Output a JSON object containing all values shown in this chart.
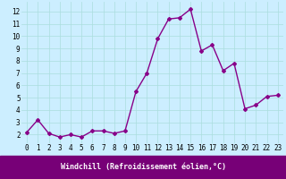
{
  "x": [
    0,
    1,
    2,
    3,
    4,
    5,
    6,
    7,
    8,
    9,
    10,
    11,
    12,
    13,
    14,
    15,
    16,
    17,
    18,
    19,
    20,
    21,
    22,
    23
  ],
  "y": [
    2.2,
    3.2,
    2.1,
    1.8,
    2.0,
    1.8,
    2.3,
    2.3,
    2.1,
    2.3,
    5.5,
    7.0,
    9.8,
    11.4,
    11.5,
    12.2,
    8.8,
    9.3,
    7.2,
    7.8,
    4.1,
    4.4,
    5.1,
    5.2
  ],
  "line_color": "#880088",
  "marker": "D",
  "marker_size": 2.0,
  "line_width": 1.0,
  "bg_color": "#cceeff",
  "grid_color": "#aadddd",
  "xlabel": "Windchill (Refroidissement éolien,°C)",
  "xlim": [
    -0.5,
    23.5
  ],
  "ylim": [
    1.3,
    12.8
  ],
  "xtick_labels": [
    "0",
    "1",
    "2",
    "3",
    "4",
    "5",
    "6",
    "7",
    "8",
    "9",
    "10",
    "11",
    "12",
    "13",
    "14",
    "15",
    "16",
    "17",
    "18",
    "19",
    "20",
    "21",
    "22",
    "23"
  ],
  "ytick_values": [
    2,
    3,
    4,
    5,
    6,
    7,
    8,
    9,
    10,
    11,
    12
  ],
  "xlabel_fontsize": 6.0,
  "tick_fontsize": 5.5,
  "bottom_bar_color": "#770077"
}
